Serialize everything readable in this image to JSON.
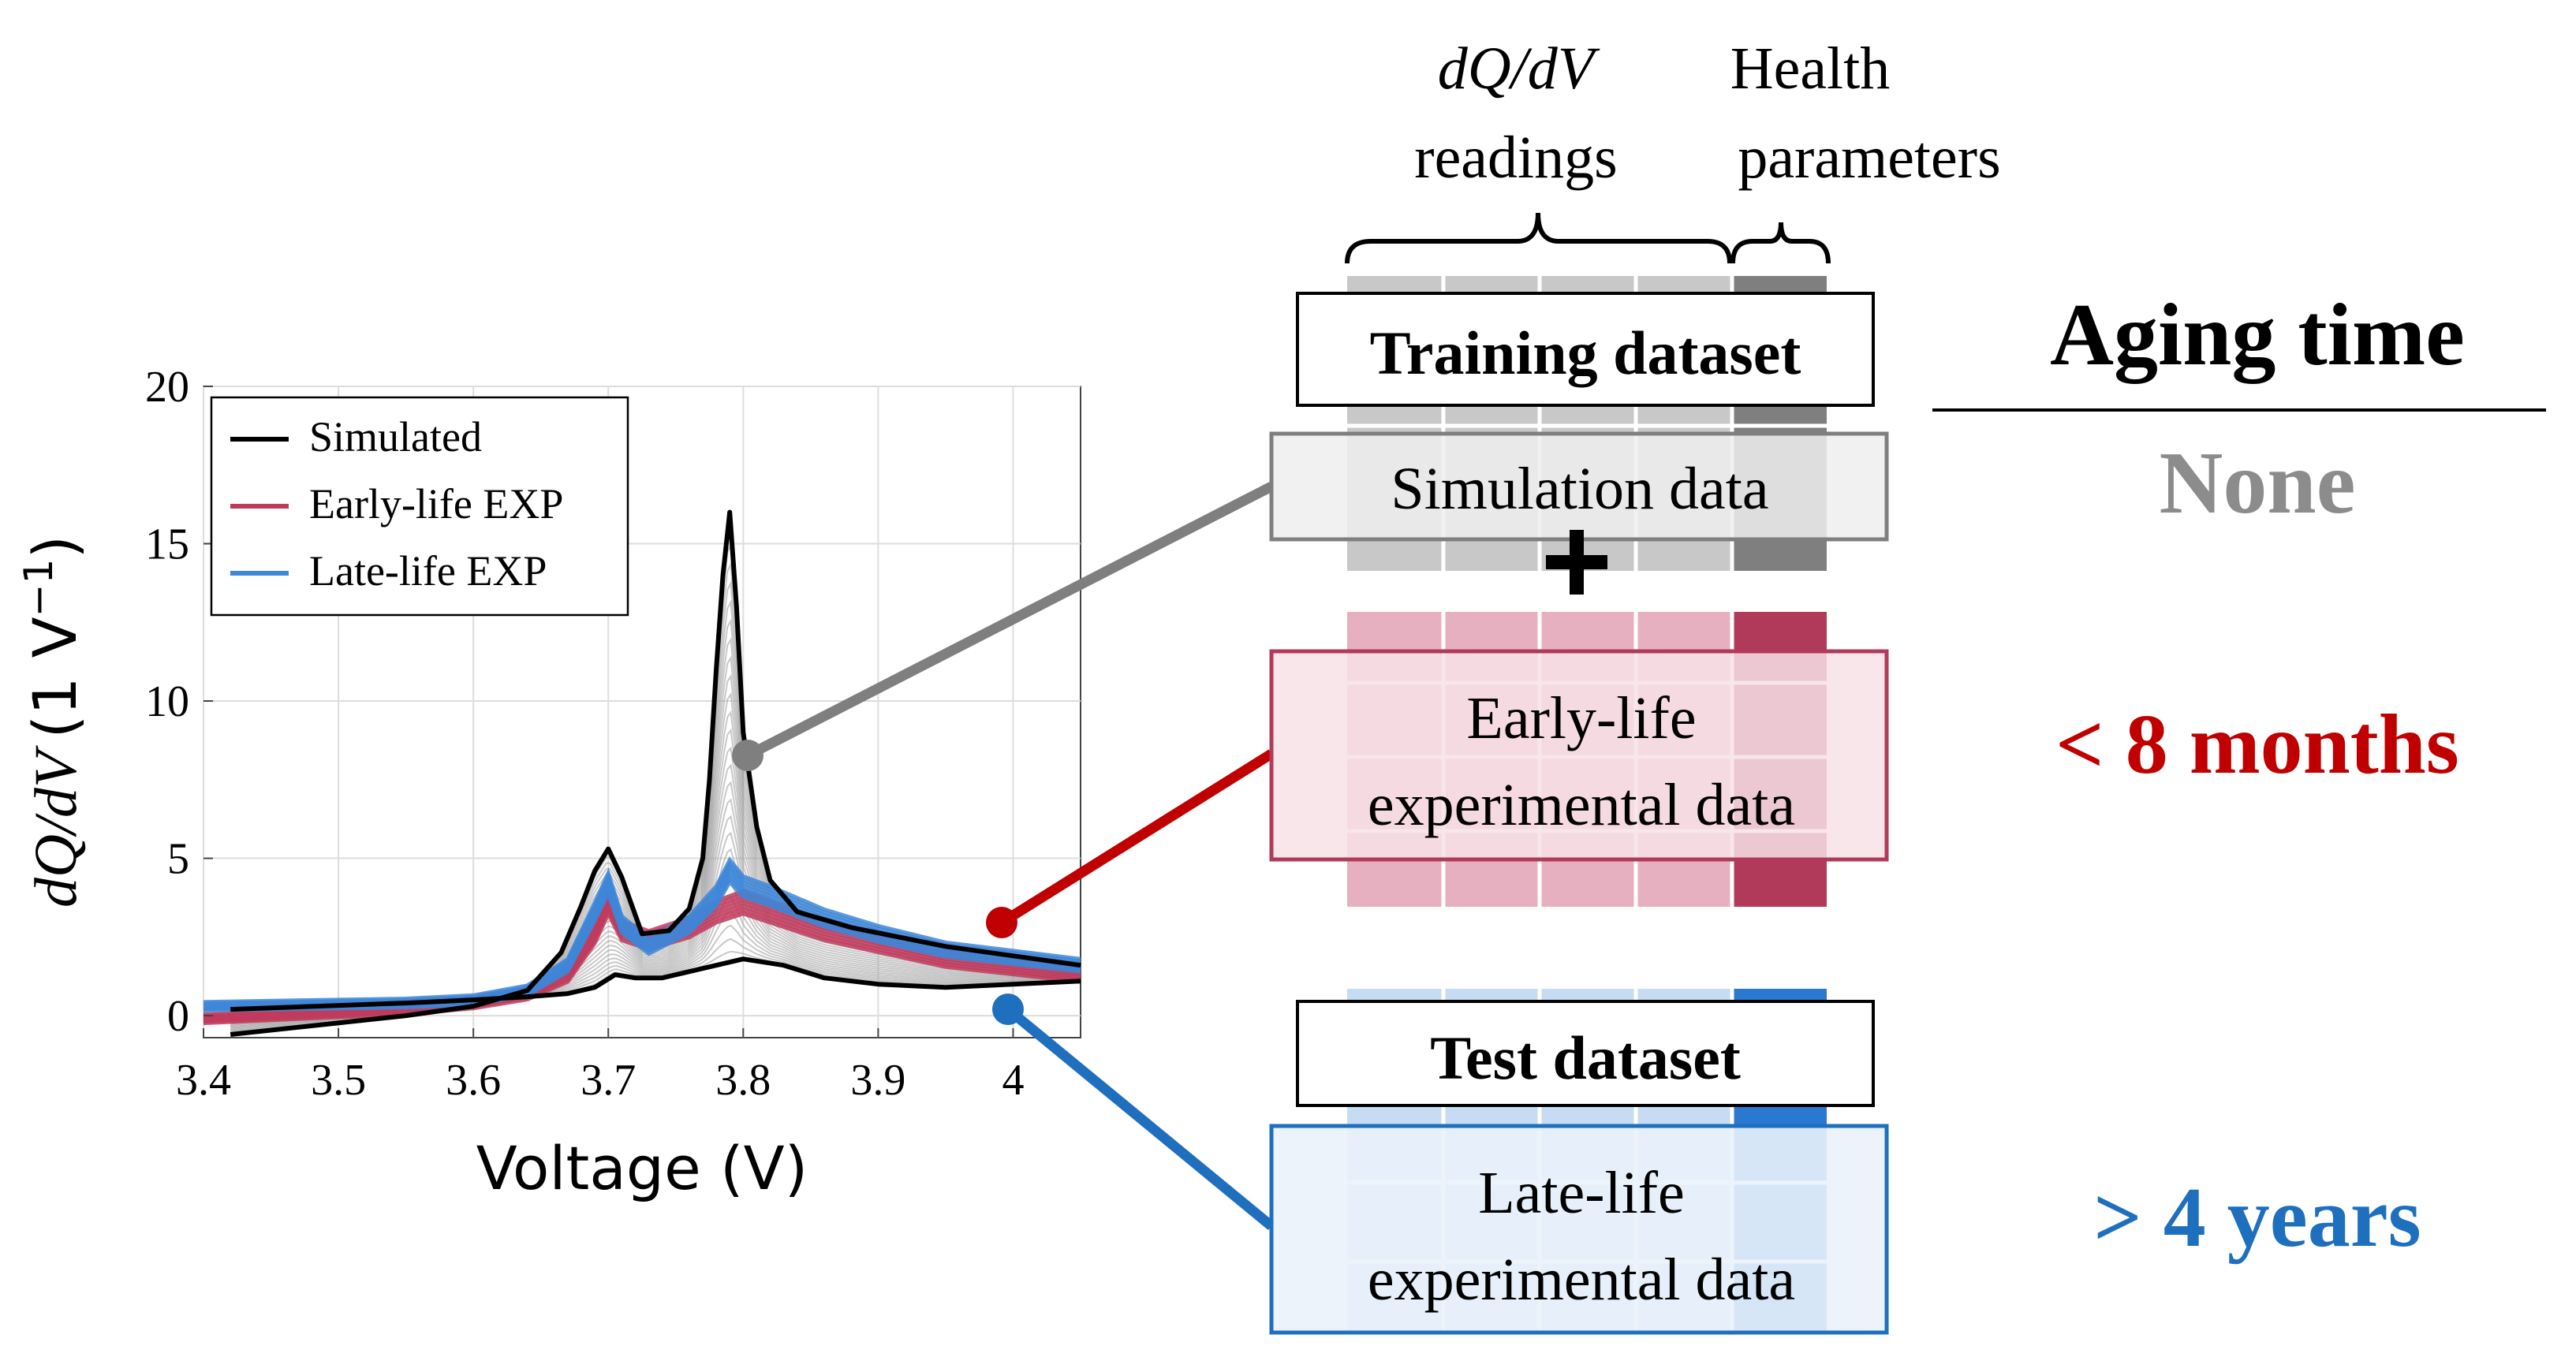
{
  "chart_data": {
    "type": "line",
    "xlabel": "Voltage (V)",
    "ylabel_italic": "dQ/dV",
    "ylabel_unit": "(1 V",
    "ylabel_sup": "−1",
    "ylabel_close": ")",
    "xlim": [
      3.4,
      4.05
    ],
    "ylim": [
      -0.7,
      20
    ],
    "xticks": [
      3.4,
      3.5,
      3.6,
      3.7,
      3.8,
      3.9,
      4.0
    ],
    "xtick_labels": [
      "3.4",
      "3.5",
      "3.6",
      "3.7",
      "3.8",
      "3.9",
      "4"
    ],
    "yticks": [
      0,
      5,
      10,
      15,
      20
    ],
    "ytick_labels": [
      "0",
      "5",
      "10",
      "15",
      "20"
    ],
    "grid": true,
    "legend": [
      {
        "label": "Simulated",
        "color": "#000000"
      },
      {
        "label": "Early-life EXP",
        "color": "#c0395c"
      },
      {
        "label": "Late-life EXP",
        "color": "#3d86d8"
      }
    ],
    "series": [
      {
        "name": "Simulated upper envelope",
        "color": "#000000",
        "x": [
          3.42,
          3.55,
          3.6,
          3.64,
          3.665,
          3.68,
          3.69,
          3.7,
          3.71,
          3.725,
          3.745,
          3.76,
          3.77,
          3.775,
          3.78,
          3.785,
          3.79,
          3.795,
          3.8,
          3.81,
          3.82,
          3.84,
          3.88,
          3.95,
          4.05
        ],
        "y": [
          -0.6,
          0.0,
          0.3,
          0.8,
          2.0,
          3.5,
          4.6,
          5.3,
          4.4,
          2.6,
          2.7,
          3.4,
          5.0,
          7.5,
          11.0,
          14.0,
          16.0,
          13.0,
          9.0,
          6.0,
          4.3,
          3.3,
          2.8,
          2.2,
          1.6
        ]
      },
      {
        "name": "Simulated lower envelope",
        "color": "#000000",
        "x": [
          3.42,
          3.55,
          3.6,
          3.64,
          3.67,
          3.69,
          3.705,
          3.72,
          3.74,
          3.76,
          3.78,
          3.8,
          3.83,
          3.86,
          3.9,
          3.95,
          4.0,
          4.05
        ],
        "y": [
          0.2,
          0.4,
          0.5,
          0.6,
          0.7,
          0.9,
          1.3,
          1.2,
          1.2,
          1.4,
          1.6,
          1.8,
          1.6,
          1.2,
          1.0,
          0.9,
          1.0,
          1.1
        ]
      },
      {
        "name": "Early-life EXP",
        "color": "#c0395c",
        "x": [
          3.4,
          3.55,
          3.6,
          3.64,
          3.67,
          3.69,
          3.7,
          3.71,
          3.73,
          3.76,
          3.78,
          3.8,
          3.82,
          3.86,
          3.9,
          3.95,
          4.05
        ],
        "y": [
          -0.1,
          0.2,
          0.4,
          0.7,
          1.3,
          2.6,
          3.6,
          2.7,
          2.4,
          2.8,
          3.3,
          3.6,
          3.3,
          2.7,
          2.3,
          1.8,
          1.3
        ]
      },
      {
        "name": "Late-life EXP",
        "color": "#3d86d8",
        "x": [
          3.4,
          3.55,
          3.6,
          3.64,
          3.67,
          3.69,
          3.7,
          3.71,
          3.73,
          3.76,
          3.78,
          3.79,
          3.8,
          3.82,
          3.86,
          3.9,
          3.95,
          4.05
        ],
        "y": [
          0.3,
          0.4,
          0.5,
          0.8,
          1.6,
          3.3,
          4.2,
          2.9,
          2.2,
          2.9,
          3.8,
          4.6,
          4.1,
          3.8,
          3.1,
          2.6,
          2.1,
          1.6
        ]
      }
    ]
  },
  "diagram": {
    "col_header_dqdv_italic": "dQ/dV",
    "col_header_dqdv_sub": "readings",
    "col_header_health_1": "Health",
    "col_header_health_2": "parameters",
    "training_label": "Training dataset",
    "simulation_label": "Simulation data",
    "plus_sign": "+",
    "early_label_1": "Early-life",
    "early_label_2": "experimental data",
    "test_label": "Test dataset",
    "late_label_1": "Late-life",
    "late_label_2": "experimental data",
    "aging_title": "Aging time",
    "aging_none": "None",
    "aging_early": "< 8 months",
    "aging_late": "> 4 years",
    "colors": {
      "gray": "#7f7f7f",
      "red": "#c00000",
      "blue": "#1f6fbf",
      "early_text": "#c00000",
      "late_text": "#1f6fbf"
    }
  }
}
